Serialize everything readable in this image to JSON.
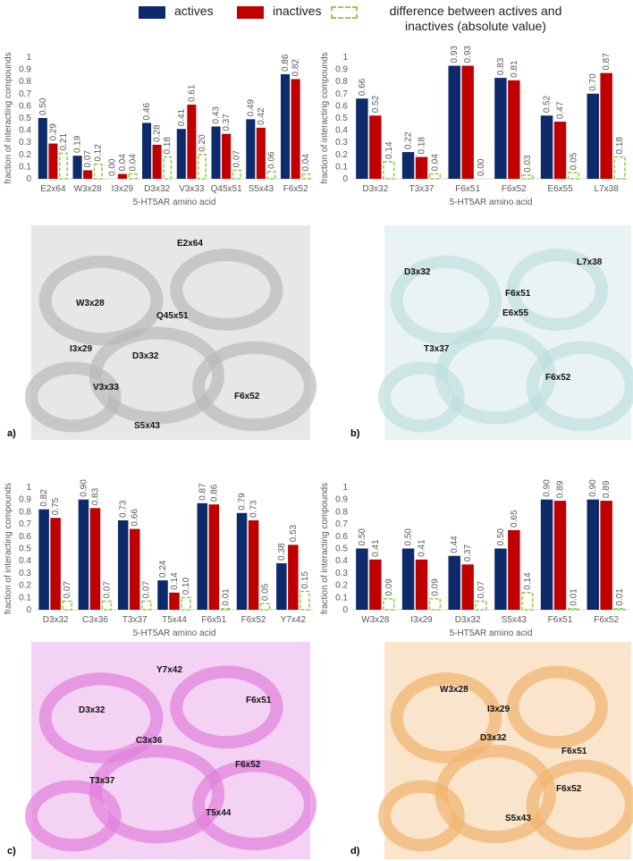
{
  "chart_data": [
    {
      "type": "bar",
      "ylabel": "fraction of interacting compounds",
      "xlabel": "5-HT5AR amino acid",
      "categories": [
        "E2x64",
        "W3x28",
        "I3x29",
        "D3x32",
        "V3x33",
        "Q45x51",
        "S5x43",
        "F6x52"
      ],
      "ylim": [
        0,
        1
      ],
      "yticks": [
        0,
        0.1,
        0.2,
        0.3,
        0.4,
        0.5,
        0.6,
        0.7,
        0.8,
        0.9,
        1
      ],
      "series": [
        {
          "name": "actives",
          "color": "#0d2a6b",
          "values": [
            0.5,
            0.19,
            0,
            0.46,
            0.41,
            0.43,
            0.49,
            0.86
          ],
          "value_labels": [
            "0.50",
            "0.19",
            "0.00",
            "0.46",
            "0.41",
            "0.43",
            "0.49",
            "0.86"
          ]
        },
        {
          "name": "inactives",
          "color": "#c00000",
          "values": [
            0.29,
            0.07,
            0.04,
            0.28,
            0.61,
            0.37,
            0.42,
            0.82
          ],
          "value_labels": [
            "0.29",
            "0.07",
            "0.04",
            "0.28",
            "0.61",
            "0.37",
            "0.42",
            "0.82"
          ]
        },
        {
          "name": "difference between actives and inactives (absolute value)",
          "color": "#8fd14f",
          "style": "dashed",
          "values": [
            0.21,
            0.12,
            0.04,
            0.18,
            0.2,
            0.07,
            0.06,
            0.04
          ],
          "value_labels": [
            "0.21",
            "0.12",
            "0.04",
            "0.18",
            "0.20",
            "0.07",
            "0.06",
            "0.04"
          ]
        }
      ]
    },
    {
      "type": "bar",
      "ylabel": "fraction of interacting compounds",
      "xlabel": "5-HT5AR amino acid",
      "categories": [
        "D3x32",
        "T3x37",
        "F6x51",
        "F6x52",
        "E6x55",
        "L7x38"
      ],
      "ylim": [
        0,
        1
      ],
      "yticks": [
        0,
        0.1,
        0.2,
        0.3,
        0.4,
        0.5,
        0.6,
        0.7,
        0.8,
        0.9,
        1
      ],
      "series": [
        {
          "color": "#0d2a6b",
          "values": [
            0.66,
            0.22,
            0.93,
            0.83,
            0.52,
            0.7
          ],
          "value_labels": [
            "0.66",
            "0.22",
            "0.93",
            "0.83",
            "0.52",
            "0.70"
          ]
        },
        {
          "color": "#c00000",
          "values": [
            0.52,
            0.18,
            0.93,
            0.81,
            0.47,
            0.87
          ],
          "value_labels": [
            "0.52",
            "0.18",
            "0.93",
            "0.81",
            "0.47",
            "0.87"
          ]
        },
        {
          "color": "#8fd14f",
          "style": "dashed",
          "values": [
            0.14,
            0.04,
            0,
            0.03,
            0.05,
            0.18
          ],
          "value_labels": [
            "0.14",
            "0.04",
            "0.00",
            "0.03",
            "0.05",
            "0.18"
          ]
        }
      ]
    },
    {
      "type": "bar",
      "ylabel": "fraction of interacting compounds",
      "xlabel": "5-HT5AR amino acid",
      "categories": [
        "D3x32",
        "C3x36",
        "T3x37",
        "T5x44",
        "F6x51",
        "F6x52",
        "Y7x42"
      ],
      "ylim": [
        0,
        1
      ],
      "yticks": [
        0,
        0.1,
        0.2,
        0.3,
        0.4,
        0.5,
        0.6,
        0.7,
        0.8,
        0.9,
        1
      ],
      "series": [
        {
          "color": "#0d2a6b",
          "values": [
            0.82,
            0.9,
            0.73,
            0.24,
            0.87,
            0.79,
            0.38
          ],
          "value_labels": [
            "0.82",
            "0.90",
            "0.73",
            "0.24",
            "0.87",
            "0.79",
            "0.38"
          ]
        },
        {
          "color": "#c00000",
          "values": [
            0.75,
            0.83,
            0.66,
            0.14,
            0.86,
            0.73,
            0.53
          ],
          "value_labels": [
            "0.75",
            "0.83",
            "0.66",
            "0.14",
            "0.86",
            "0.73",
            "0.53"
          ]
        },
        {
          "color": "#8fd14f",
          "style": "dashed",
          "values": [
            0.07,
            0.07,
            0.07,
            0.1,
            0.01,
            0.05,
            0.15
          ],
          "value_labels": [
            "0.07",
            "0.07",
            "0.07",
            "0.10",
            "0.01",
            "0.05",
            "0.15"
          ]
        }
      ]
    },
    {
      "type": "bar",
      "ylabel": "fraction of interacting compounds",
      "xlabel": "5-HT5AR amino acid",
      "categories": [
        "W3x28",
        "I3x29",
        "D3x32",
        "S5x43",
        "F6x51",
        "F6x52"
      ],
      "ylim": [
        0,
        1
      ],
      "yticks": [
        0,
        0.1,
        0.2,
        0.3,
        0.4,
        0.5,
        0.6,
        0.7,
        0.8,
        0.9,
        1
      ],
      "series": [
        {
          "color": "#0d2a6b",
          "values": [
            0.5,
            0.5,
            0.44,
            0.5,
            0.9,
            0.9
          ],
          "value_labels": [
            "0.50",
            "0.50",
            "0.44",
            "0.50",
            "0.90",
            "0.90"
          ]
        },
        {
          "color": "#c00000",
          "values": [
            0.41,
            0.41,
            0.37,
            0.65,
            0.89,
            0.89
          ],
          "value_labels": [
            "0.41",
            "0.41",
            "0.37",
            "0.65",
            "0.89",
            "0.89"
          ]
        },
        {
          "color": "#8fd14f",
          "style": "dashed",
          "values": [
            0.09,
            0.09,
            0.07,
            0.14,
            0.01,
            0.01
          ],
          "value_labels": [
            "0.09",
            "0.09",
            "0.07",
            "0.14",
            "0.01",
            "0.01"
          ]
        }
      ]
    }
  ],
  "panels": [
    {
      "label": "a)",
      "color": "#b9b9b9",
      "residues": [
        "E2x64",
        "W3x28",
        "Q45x51",
        "I3x29",
        "D3x32",
        "V3x33",
        "F6x52",
        "S5x43"
      ]
    },
    {
      "label": "b)",
      "color": "#bfdede",
      "residues": [
        "D3x32",
        "L7x38",
        "F6x51",
        "E6x55",
        "T3x37",
        "F6x52"
      ]
    },
    {
      "label": "c)",
      "color": "#df7fdc",
      "residues": [
        "Y7x42",
        "D3x32",
        "F6x51",
        "C3x36",
        "F6x52",
        "T3x37",
        "T5x44"
      ]
    },
    {
      "label": "d)",
      "color": "#f0b46e",
      "residues": [
        "W3x28",
        "I3x29",
        "D3x32",
        "F6x51",
        "F6x52",
        "S5x43"
      ]
    }
  ]
}
